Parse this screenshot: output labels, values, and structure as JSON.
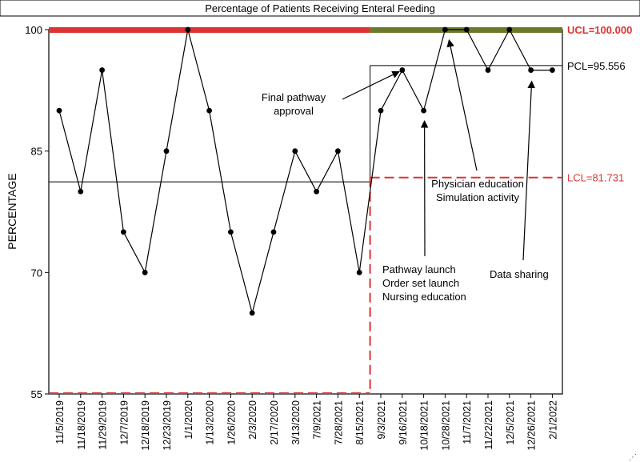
{
  "chart_data": {
    "type": "line",
    "title": "Percentage of Patients Receiving Enteral Feeding",
    "ylabel": "PERCENTAGE",
    "xlabel": "",
    "ylim": [
      55,
      100
    ],
    "yticks": [
      55,
      70,
      85,
      100
    ],
    "grid": false,
    "categories": [
      "11/5/2019",
      "11/18/2019",
      "11/29/2019",
      "12/7/2019",
      "12/18/2019",
      "12/23/2019",
      "1/1/2020",
      "1/13/2020",
      "1/26/2020",
      "2/3/2020",
      "2/17/2020",
      "3/13/2020",
      "7/9/2021",
      "7/28/2021",
      "8/15/2021",
      "9/3/2021",
      "9/16/2021",
      "10/18/2021",
      "10/28/2021",
      "11/7/2021",
      "11/22/2021",
      "12/5/2021",
      "12/26/2021",
      "2/1/2022"
    ],
    "x_ticks_shown": [
      "11/5/2019",
      "11/18/2019",
      "11/29/2019",
      "12/7/2019",
      "12/18/2019",
      "12/23/2019",
      "1/1/2020",
      "1/13/2020",
      "1/26/2020",
      "2/3/2020",
      "2/17/2020",
      "3/13/2020",
      "7/9/2021",
      "7/28/2021",
      "8/15/2021",
      "9/3/2021",
      "9/16/2021",
      "10/18/2021",
      "10/28/2021",
      "11/7/2021",
      "11/22/2021",
      "12/5/2021",
      "12/26/2021",
      "2/1/2022"
    ],
    "series": [
      {
        "values": [
          90,
          80,
          95,
          75,
          70,
          85,
          100,
          90,
          75,
          65,
          75,
          85,
          80,
          85,
          70,
          90,
          95,
          90,
          100,
          100,
          95,
          100,
          95,
          95
        ]
      }
    ],
    "phases": [
      {
        "start_index": 0,
        "end_index": 14,
        "center": 81.2,
        "ucl": 100,
        "lcl": 55,
        "band_color": "#dd3333"
      },
      {
        "start_index": 15,
        "end_index": 23,
        "center": 95.556,
        "ucl": 100,
        "lcl": 81.731,
        "band_color": "#6b7a2a"
      }
    ],
    "limit_labels": {
      "ucl": "UCL=100.000",
      "pcl": "PCL=95.556",
      "lcl": "LCL=81.731"
    },
    "annotations": [
      {
        "lines": [
          "Final pathway",
          "approval"
        ],
        "target_index": 16,
        "target_value": 95
      },
      {
        "lines": [
          "Physician education",
          "Simulation activity"
        ],
        "target_index": 18,
        "target_value": 99
      },
      {
        "lines": [
          "Pathway launch",
          "Order set launch",
          "Nursing education"
        ],
        "target_index": 17,
        "target_value": 89
      },
      {
        "lines": [
          "Data sharing"
        ],
        "target_index": 22,
        "target_value": 94
      }
    ],
    "colors": {
      "line": "#000000",
      "limit_red": "#dd3333",
      "limit_green": "#6b7a2a"
    }
  }
}
